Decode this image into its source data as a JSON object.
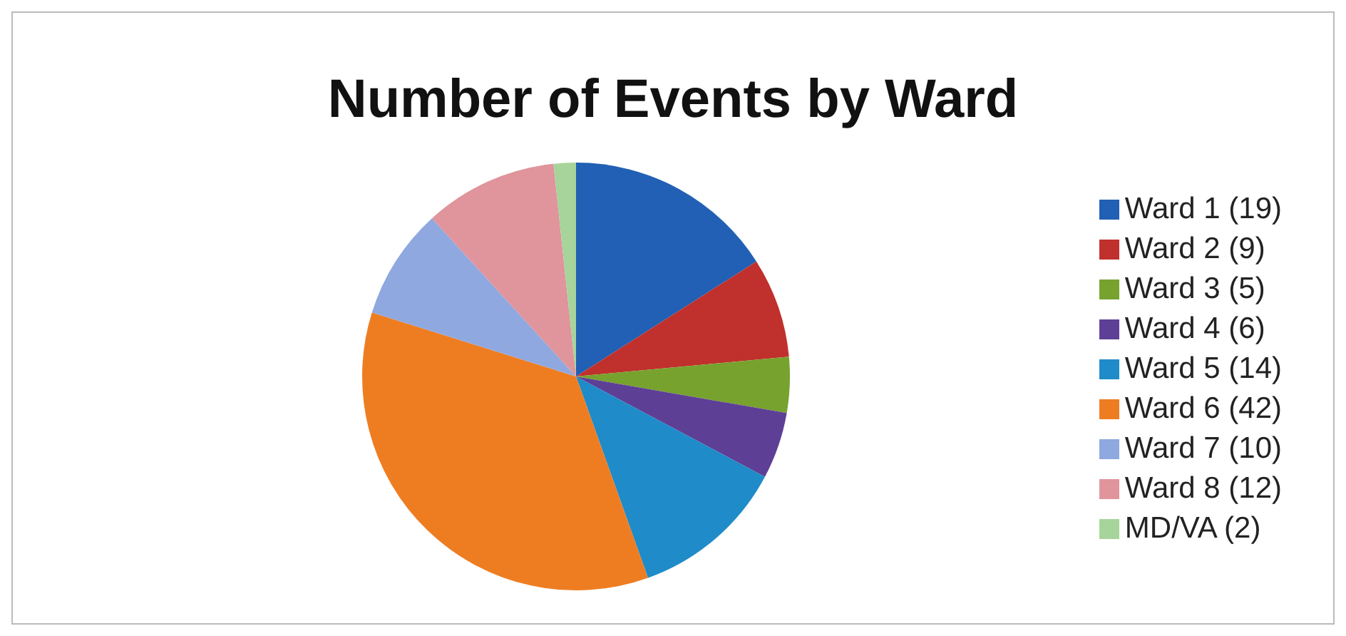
{
  "chart_data": {
    "type": "pie",
    "title": "Number of Events by Ward",
    "categories": [
      "Ward 1 (19)",
      "Ward 2 (9)",
      "Ward 3 (5)",
      "Ward 4 (6)",
      "Ward 5 (14)",
      "Ward 6 (42)",
      "Ward 7 (10)",
      "Ward 8 (12)",
      "MD/VA (2)"
    ],
    "values": [
      19,
      9,
      5,
      6,
      14,
      42,
      10,
      12,
      2
    ],
    "colors": [
      "#2160b4",
      "#c0302c",
      "#77a22e",
      "#5e3f96",
      "#1f8bc8",
      "#ee7d22",
      "#8fa8e0",
      "#e0949c",
      "#a6d49a"
    ],
    "legend": "right"
  }
}
